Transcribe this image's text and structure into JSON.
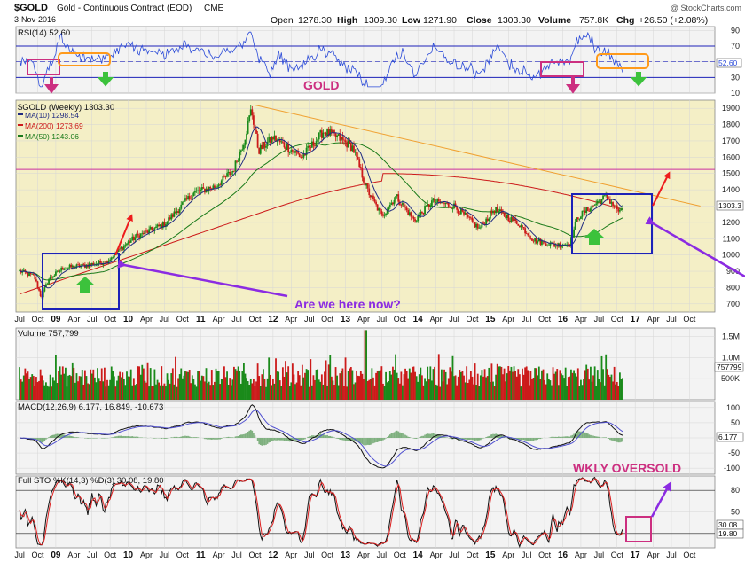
{
  "header": {
    "symbol": "$GOLD",
    "name": "Gold - Continuous Contract (EOD)",
    "exchange": "CME",
    "date": "3-Nov-2016",
    "watermark": "@ StockCharts.com",
    "open_label": "Open",
    "open": "1278.30",
    "high_label": "High",
    "high": "1309.30",
    "low_label": "Low",
    "low": "1271.90",
    "close_label": "Close",
    "close": "1303.30",
    "volume_label": "Volume",
    "volume": "757.8K",
    "chg_label": "Chg",
    "chg": "+26.50 (+2.08%)"
  },
  "annotations": {
    "gold_label": "GOLD",
    "question": "Are we here now?",
    "oversold": "WKLY OVERSOLD"
  },
  "colors": {
    "price_bg": "#f4efc6",
    "panel_bg": "#f3f3f3",
    "up": "#1a8a1a",
    "down": "#cc1a1a",
    "ma10": "#1f2a80",
    "ma200": "#cc1a1a",
    "ma50": "#1a7a1a",
    "rsi": "#2a4ad8",
    "magenta": "#cc2f80",
    "purple": "#8b2be2",
    "orange": "#ff9a1a",
    "box": "#1c22b8",
    "green_arrow": "#3cc23c",
    "red_arrow": "#ee1c1c"
  },
  "chart_data": [
    {
      "type": "line",
      "title": "RSI(14) 52.60",
      "series": [
        {
          "name": "RSI(14)",
          "last": 52.6
        }
      ],
      "ylim": [
        10,
        95
      ],
      "yticks": [
        10,
        30,
        50,
        70,
        90
      ],
      "ytick_labels": [
        "10",
        "30",
        "50",
        "70",
        "90"
      ],
      "reference_lines": [
        30,
        70
      ],
      "value_badge": "52.60"
    },
    {
      "type": "candlestick",
      "title": "$GOLD (Weekly) 1303.30",
      "series": [
        {
          "name": "MA(10)",
          "label": "MA(10) 1298.54",
          "last": 1298.54
        },
        {
          "name": "MA(200)",
          "label": "MA(200) 1273.69",
          "last": 1273.69
        },
        {
          "name": "MA(50)",
          "label": "MA(50) 1243.06",
          "last": 1243.06
        }
      ],
      "ylim": [
        650,
        1950
      ],
      "yticks": [
        700,
        800,
        900,
        1000,
        1100,
        1200,
        1300,
        1400,
        1500,
        1600,
        1700,
        1800,
        1900
      ],
      "ytick_labels": [
        "700",
        "800",
        "900",
        "1000",
        "1100",
        "1200",
        "1300",
        "1400",
        "1500",
        "1600",
        "1700",
        "1800",
        "1900"
      ],
      "value_badge": "1303.3",
      "horizontal_line": 1525,
      "trendline": [
        {
          "x": "2011.75",
          "y": 1920
        },
        {
          "x": "2017.9",
          "y": 1300
        }
      ],
      "waypoints": [
        {
          "x": 2008.5,
          "y": 900
        },
        {
          "x": 2008.7,
          "y": 870
        },
        {
          "x": 2008.8,
          "y": 740
        },
        {
          "x": 2008.9,
          "y": 850
        },
        {
          "x": 2009.1,
          "y": 920
        },
        {
          "x": 2009.4,
          "y": 935
        },
        {
          "x": 2009.7,
          "y": 960
        },
        {
          "x": 2009.95,
          "y": 1060
        },
        {
          "x": 2010.1,
          "y": 1110
        },
        {
          "x": 2010.5,
          "y": 1190
        },
        {
          "x": 2010.9,
          "y": 1380
        },
        {
          "x": 2011.2,
          "y": 1420
        },
        {
          "x": 2011.45,
          "y": 1520
        },
        {
          "x": 2011.6,
          "y": 1700
        },
        {
          "x": 2011.7,
          "y": 1895
        },
        {
          "x": 2011.8,
          "y": 1640
        },
        {
          "x": 2012.0,
          "y": 1720
        },
        {
          "x": 2012.4,
          "y": 1600
        },
        {
          "x": 2012.7,
          "y": 1760
        },
        {
          "x": 2012.9,
          "y": 1720
        },
        {
          "x": 2013.1,
          "y": 1660
        },
        {
          "x": 2013.3,
          "y": 1400
        },
        {
          "x": 2013.5,
          "y": 1240
        },
        {
          "x": 2013.7,
          "y": 1360
        },
        {
          "x": 2013.95,
          "y": 1210
        },
        {
          "x": 2014.2,
          "y": 1330
        },
        {
          "x": 2014.5,
          "y": 1300
        },
        {
          "x": 2014.85,
          "y": 1160
        },
        {
          "x": 2015.05,
          "y": 1280
        },
        {
          "x": 2015.4,
          "y": 1190
        },
        {
          "x": 2015.6,
          "y": 1090
        },
        {
          "x": 2015.9,
          "y": 1060
        },
        {
          "x": 2016.1,
          "y": 1070
        },
        {
          "x": 2016.2,
          "y": 1230
        },
        {
          "x": 2016.5,
          "y": 1330
        },
        {
          "x": 2016.6,
          "y": 1360
        },
        {
          "x": 2016.8,
          "y": 1255
        },
        {
          "x": 2016.84,
          "y": 1303
        }
      ],
      "boxes": [
        {
          "x0": "2008.75",
          "x1": "2009.90",
          "y0": 685,
          "y1": 1010
        },
        {
          "x0": "2016.00",
          "x1": "2016.92",
          "y0": 1010,
          "y1": 1380
        }
      ]
    },
    {
      "type": "bar",
      "title": "Volume 757,799",
      "series": [
        {
          "name": "Volume",
          "last": 757799
        }
      ],
      "ylim": [
        0,
        1700000
      ],
      "yticks": [
        500000,
        1000000,
        1500000
      ],
      "ytick_labels": [
        "500K",
        "1.0M",
        "1.5M"
      ],
      "value_badge": "757799"
    },
    {
      "type": "line",
      "title": "MACD(12,26,9) 6.177, 16.849, -10.673",
      "series": [
        {
          "name": "MACD(12,26,9)",
          "last": 6.177
        },
        {
          "name": "Signal",
          "last": 16.849
        },
        {
          "name": "Histogram",
          "last": -10.673
        }
      ],
      "ylim": [
        -120,
        120
      ],
      "yticks": [
        -100,
        -50,
        0,
        50,
        100
      ],
      "ytick_labels": [
        "-100",
        "-50",
        "0",
        "50",
        "100"
      ],
      "value_badge": "6.177"
    },
    {
      "type": "line",
      "title": "Full STO %K(14,3) %D(3) 30.08, 19.80",
      "series": [
        {
          "name": "%K(14,3)",
          "last": 30.08
        },
        {
          "name": "%D(3)",
          "last": 19.8
        }
      ],
      "ylim": [
        0,
        100
      ],
      "yticks": [
        20,
        50,
        80
      ],
      "ytick_labels": [
        "20",
        "50",
        "80"
      ],
      "reference_lines": [
        20,
        80
      ],
      "value_badges": [
        "30.08",
        "19.80"
      ]
    }
  ],
  "x_axis": {
    "xlim": [
      2008.45,
      2018.1
    ],
    "ticks": [
      {
        "x": 2008.5,
        "label": "Jul",
        "major": false
      },
      {
        "x": 2008.75,
        "label": "Oct",
        "major": false
      },
      {
        "x": 2009.0,
        "label": "09",
        "major": true
      },
      {
        "x": 2009.25,
        "label": "Apr",
        "major": false
      },
      {
        "x": 2009.5,
        "label": "Jul",
        "major": false
      },
      {
        "x": 2009.75,
        "label": "Oct",
        "major": false
      },
      {
        "x": 2010.0,
        "label": "10",
        "major": true
      },
      {
        "x": 2010.25,
        "label": "Apr",
        "major": false
      },
      {
        "x": 2010.5,
        "label": "Jul",
        "major": false
      },
      {
        "x": 2010.75,
        "label": "Oct",
        "major": false
      },
      {
        "x": 2011.0,
        "label": "11",
        "major": true
      },
      {
        "x": 2011.25,
        "label": "Apr",
        "major": false
      },
      {
        "x": 2011.5,
        "label": "Jul",
        "major": false
      },
      {
        "x": 2011.75,
        "label": "Oct",
        "major": false
      },
      {
        "x": 2012.0,
        "label": "12",
        "major": true
      },
      {
        "x": 2012.25,
        "label": "Apr",
        "major": false
      },
      {
        "x": 2012.5,
        "label": "Jul",
        "major": false
      },
      {
        "x": 2012.75,
        "label": "Oct",
        "major": false
      },
      {
        "x": 2013.0,
        "label": "13",
        "major": true
      },
      {
        "x": 2013.25,
        "label": "Apr",
        "major": false
      },
      {
        "x": 2013.5,
        "label": "Jul",
        "major": false
      },
      {
        "x": 2013.75,
        "label": "Oct",
        "major": false
      },
      {
        "x": 2014.0,
        "label": "14",
        "major": true
      },
      {
        "x": 2014.25,
        "label": "Apr",
        "major": false
      },
      {
        "x": 2014.5,
        "label": "Jul",
        "major": false
      },
      {
        "x": 2014.75,
        "label": "Oct",
        "major": false
      },
      {
        "x": 2015.0,
        "label": "15",
        "major": true
      },
      {
        "x": 2015.25,
        "label": "Apr",
        "major": false
      },
      {
        "x": 2015.5,
        "label": "Jul",
        "major": false
      },
      {
        "x": 2015.75,
        "label": "Oct",
        "major": false
      },
      {
        "x": 2016.0,
        "label": "16",
        "major": true
      },
      {
        "x": 2016.25,
        "label": "Apr",
        "major": false
      },
      {
        "x": 2016.5,
        "label": "Jul",
        "major": false
      },
      {
        "x": 2016.75,
        "label": "Oct",
        "major": false
      },
      {
        "x": 2017.0,
        "label": "17",
        "major": true
      },
      {
        "x": 2017.25,
        "label": "Apr",
        "major": false
      },
      {
        "x": 2017.5,
        "label": "Jul",
        "major": false
      },
      {
        "x": 2017.75,
        "label": "Oct",
        "major": false
      }
    ]
  }
}
